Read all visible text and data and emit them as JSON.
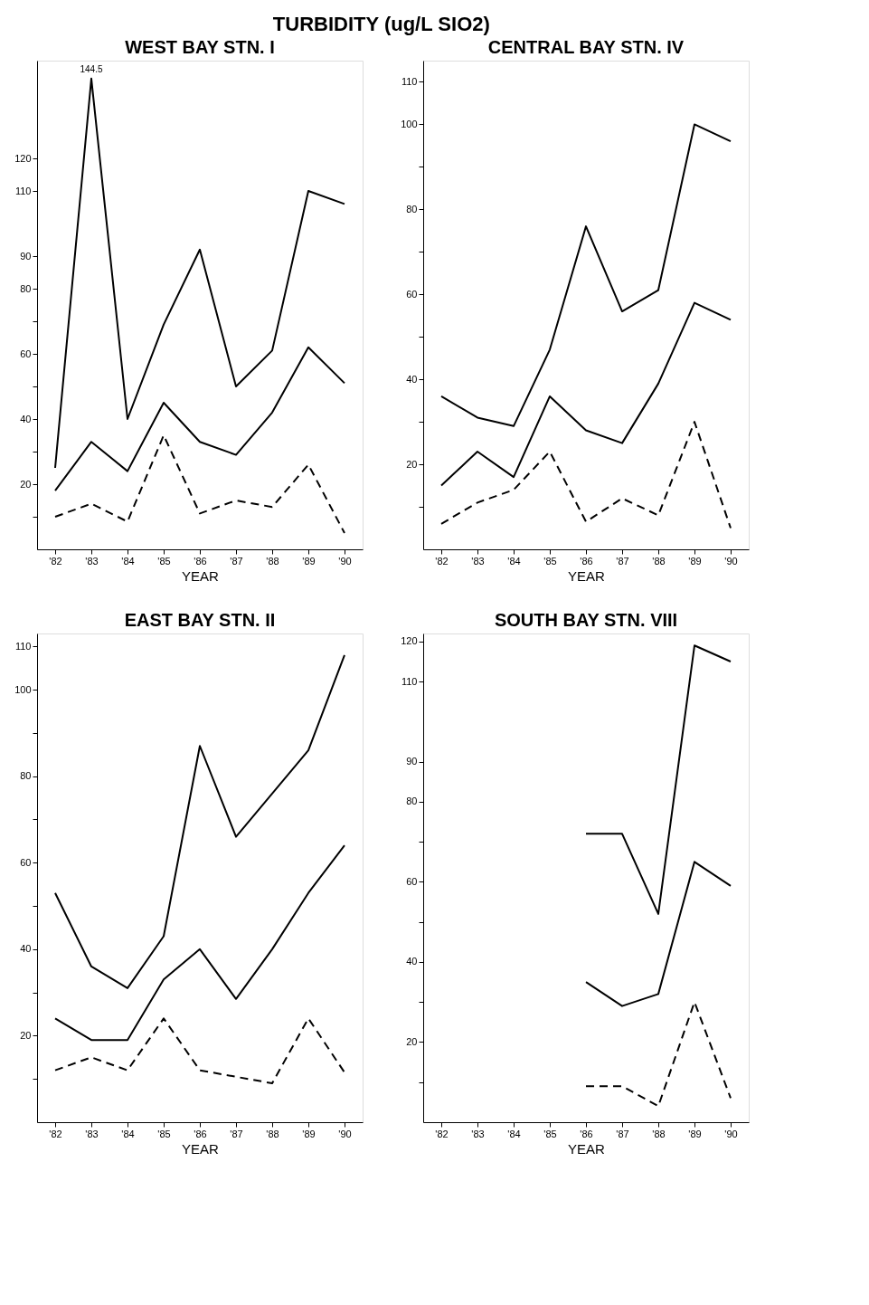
{
  "chart_data": [
    {
      "type": "line",
      "title": "WEST BAY STN. I",
      "xlabel": "YEAR",
      "annotations": [
        "TURBIDITY (ug/L SIO2)",
        {
          "text": "144.5",
          "x": "'83",
          "y": 144.5
        }
      ],
      "categories": [
        "'82",
        "'83",
        "'84",
        "'85",
        "'86",
        "'87",
        "'88",
        "'89",
        "'90"
      ],
      "series": [
        {
          "color": "#000000",
          "line_style": "solid",
          "values": [
            25,
            144.5,
            40,
            69,
            92,
            50,
            61,
            110,
            106
          ]
        },
        {
          "color": "#000000",
          "line_style": "solid",
          "values": [
            18,
            33,
            24,
            45,
            33,
            29,
            42,
            62,
            51
          ]
        },
        {
          "color": "#000000",
          "line_style": "dashed",
          "values": [
            10,
            14,
            8.5,
            35,
            11,
            15,
            13,
            26,
            5
          ]
        }
      ],
      "ylim": [
        0,
        150
      ],
      "yticks": [
        {
          "value": 10,
          "label": null
        },
        20,
        {
          "value": 30,
          "label": null
        },
        40,
        {
          "value": 50,
          "label": null
        },
        60,
        {
          "value": 70,
          "label": null
        },
        80,
        90,
        110,
        120
      ],
      "grid": false,
      "legend": false,
      "marker": "none"
    },
    {
      "type": "line",
      "title": "CENTRAL BAY STN. IV",
      "xlabel": "YEAR",
      "categories": [
        "'82",
        "'83",
        "'84",
        "'85",
        "'86",
        "'87",
        "'88",
        "'89",
        "'90"
      ],
      "series": [
        {
          "color": "#000000",
          "line_style": "solid",
          "values": [
            36,
            31,
            29,
            47,
            76,
            56,
            61,
            100,
            96
          ]
        },
        {
          "color": "#000000",
          "line_style": "solid",
          "values": [
            15,
            23,
            17,
            36,
            28,
            25,
            39,
            58,
            54
          ]
        },
        {
          "color": "#000000",
          "line_style": "dashed",
          "values": [
            6,
            11,
            14,
            23,
            6.5,
            12,
            8,
            30,
            5
          ]
        }
      ],
      "ylim": [
        0,
        115
      ],
      "yticks": [
        {
          "value": 10,
          "label": null
        },
        20,
        {
          "value": 30,
          "label": null
        },
        40,
        {
          "value": 50,
          "label": null
        },
        60,
        {
          "value": 70,
          "label": null
        },
        80,
        {
          "value": 90,
          "label": null
        },
        100,
        110
      ],
      "grid": false,
      "legend": false,
      "marker": "none"
    },
    {
      "type": "line",
      "title": "EAST BAY STN. II",
      "xlabel": "YEAR",
      "categories": [
        "'82",
        "'83",
        "'84",
        "'85",
        "'86",
        "'87",
        "'88",
        "'89",
        "'90"
      ],
      "series": [
        {
          "color": "#000000",
          "line_style": "solid",
          "values": [
            53,
            36,
            31,
            43,
            87,
            66,
            76,
            86,
            108
          ]
        },
        {
          "color": "#000000",
          "line_style": "solid",
          "values": [
            24,
            19,
            19,
            33,
            40,
            28.5,
            40,
            53,
            64
          ]
        },
        {
          "color": "#000000",
          "line_style": "dashed",
          "values": [
            12,
            15,
            12,
            24,
            12,
            10.5,
            9,
            24,
            11.5
          ]
        }
      ],
      "ylim": [
        0,
        113
      ],
      "yticks": [
        {
          "value": 10,
          "label": null
        },
        20,
        {
          "value": 30,
          "label": null
        },
        40,
        {
          "value": 50,
          "label": null
        },
        60,
        {
          "value": 70,
          "label": null
        },
        80,
        {
          "value": 90,
          "label": null
        },
        100,
        110
      ],
      "grid": false,
      "legend": false,
      "marker": "none"
    },
    {
      "type": "line",
      "title": "SOUTH BAY STN. VIII",
      "xlabel": "YEAR",
      "categories": [
        "'82",
        "'83",
        "'84",
        "'85",
        "'86",
        "'87",
        "'88",
        "'89",
        "'90"
      ],
      "series": [
        {
          "color": "#000000",
          "line_style": "solid",
          "values": [
            null,
            null,
            null,
            null,
            72,
            72,
            52,
            119,
            115
          ]
        },
        {
          "color": "#000000",
          "line_style": "solid",
          "values": [
            null,
            null,
            null,
            null,
            35,
            29,
            32,
            65,
            59
          ]
        },
        {
          "color": "#000000",
          "line_style": "dashed",
          "values": [
            null,
            null,
            null,
            null,
            9,
            9,
            4,
            30,
            6
          ]
        }
      ],
      "ylim": [
        0,
        122
      ],
      "yticks": [
        {
          "value": 10,
          "label": null
        },
        20,
        {
          "value": 30,
          "label": null
        },
        40,
        {
          "value": 50,
          "label": null
        },
        60,
        {
          "value": 70,
          "label": null
        },
        80,
        90,
        110,
        120
      ],
      "grid": false,
      "legend": false,
      "marker": "none"
    }
  ]
}
